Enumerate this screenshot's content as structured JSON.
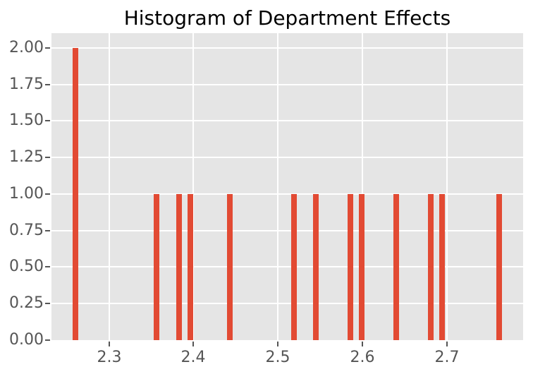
{
  "chart_data": {
    "type": "bar",
    "subtype": "histogram",
    "title": "Histogram of Department Effects",
    "xlabel": "",
    "ylabel": "",
    "xlim": [
      2.232,
      2.79
    ],
    "ylim": [
      0,
      2.1
    ],
    "grid": true,
    "legend": false,
    "style": "ggplot",
    "bin_width": 0.0067,
    "bins": [
      {
        "center": 2.26,
        "count": 2
      },
      {
        "center": 2.356,
        "count": 1
      },
      {
        "center": 2.383,
        "count": 1
      },
      {
        "center": 2.396,
        "count": 1
      },
      {
        "center": 2.443,
        "count": 1
      },
      {
        "center": 2.519,
        "count": 1
      },
      {
        "center": 2.545,
        "count": 1
      },
      {
        "center": 2.586,
        "count": 1
      },
      {
        "center": 2.599,
        "count": 1
      },
      {
        "center": 2.64,
        "count": 1
      },
      {
        "center": 2.681,
        "count": 1
      },
      {
        "center": 2.694,
        "count": 1
      },
      {
        "center": 2.762,
        "count": 1
      }
    ],
    "xticks": {
      "values": [
        2.3,
        2.4,
        2.5,
        2.6,
        2.7
      ],
      "labels": [
        "2.3",
        "2.4",
        "2.5",
        "2.6",
        "2.7"
      ]
    },
    "yticks": {
      "values": [
        0,
        0.25,
        0.5,
        0.75,
        1.0,
        1.25,
        1.5,
        1.75,
        2.0
      ],
      "labels": [
        "0.00",
        "0.25",
        "0.50",
        "0.75",
        "1.00",
        "1.25",
        "1.50",
        "1.75",
        "2.00"
      ]
    },
    "colors": {
      "bar": "#E24A33",
      "panel_bg": "#E5E5E5",
      "grid": "#FFFFFF",
      "tick_label": "#555555",
      "tick_mark": "#555555",
      "title": "#000000",
      "figure_bg": "#FFFFFF"
    }
  }
}
